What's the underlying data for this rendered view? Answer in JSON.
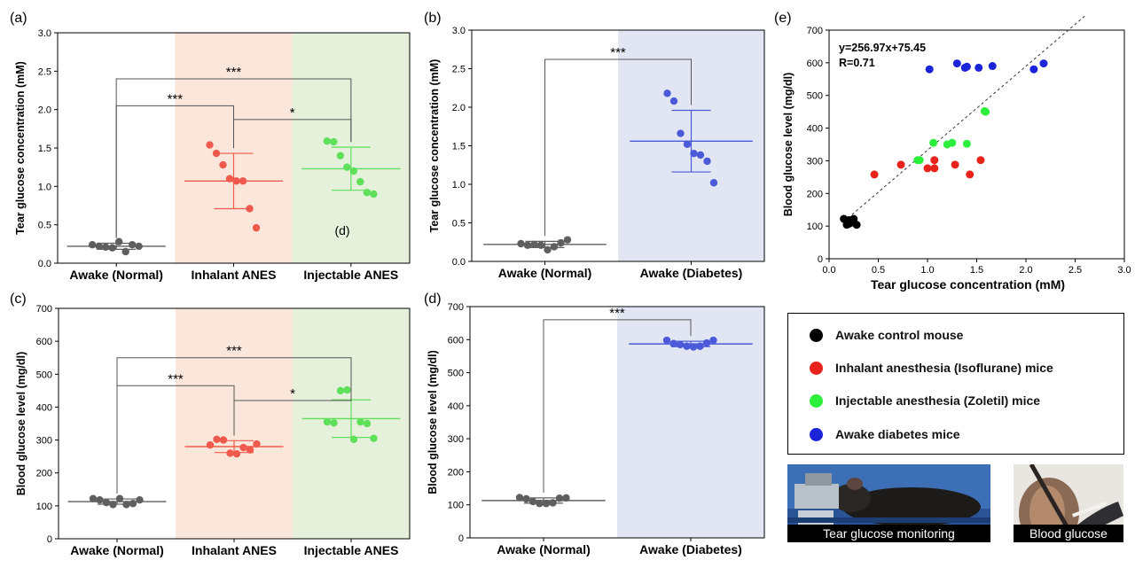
{
  "chart_data": [
    {
      "panel": "(a)",
      "type": "scatter",
      "categories": [
        "Awake (Normal)",
        "Inhalant ANES",
        "Injectable ANES"
      ],
      "ylabel": "Tear glucose concentration (mM)",
      "ylim": [
        0,
        3
      ],
      "yticks": [
        "0.0",
        "0.5",
        "1.0",
        "1.5",
        "2.0",
        "2.5",
        "3.0"
      ],
      "yticks_values": [
        0,
        0.5,
        1.0,
        1.5,
        2.0,
        2.5,
        3.0
      ],
      "series": [
        {
          "name": "Awake (Normal)",
          "color": "#5f5f5f",
          "values": [
            0.24,
            0.22,
            0.21,
            0.2,
            0.28,
            0.15,
            0.24,
            0.22
          ],
          "mean": 0.22,
          "sd": 0.04
        },
        {
          "name": "Inhalant ANES",
          "color": "#f05a4c",
          "values": [
            1.54,
            1.43,
            1.28,
            1.1,
            1.07,
            1.07,
            0.71,
            0.46
          ],
          "mean": 1.07,
          "sd": 0.36
        },
        {
          "name": "Injectable ANES",
          "color": "#5ee05a",
          "values": [
            1.59,
            1.58,
            1.4,
            1.25,
            1.2,
            1.06,
            0.92,
            0.9
          ],
          "mean": 1.23,
          "sd": 0.28
        }
      ],
      "significance": [
        {
          "from": 0,
          "to": 1,
          "label": "***",
          "y": 2.05
        },
        {
          "from": 0,
          "to": 2,
          "label": "***",
          "y": 2.4
        },
        {
          "from": 1,
          "to": 2,
          "label": "*",
          "y": 1.87
        }
      ],
      "annotation": "(d)"
    },
    {
      "panel": "(b)",
      "type": "scatter",
      "categories": [
        "Awake (Normal)",
        "Awake (Diabetes)"
      ],
      "ylabel": "Tear glucose concentration (mM)",
      "ylim": [
        0,
        3
      ],
      "yticks": [
        "0.0",
        "0.5",
        "1.0",
        "1.5",
        "2.0",
        "2.5",
        "3.0"
      ],
      "yticks_values": [
        0,
        0.5,
        1.0,
        1.5,
        2.0,
        2.5,
        3.0
      ],
      "series": [
        {
          "name": "Awake (Normal)",
          "color": "#5f5f5f",
          "values": [
            0.23,
            0.21,
            0.22,
            0.21,
            0.15,
            0.19,
            0.24,
            0.28
          ],
          "mean": 0.22,
          "sd": 0.04
        },
        {
          "name": "Awake (Diabetes)",
          "color": "#4a5ad8",
          "values": [
            2.18,
            2.08,
            1.66,
            1.52,
            1.4,
            1.38,
            1.3,
            1.02
          ],
          "mean": 1.56,
          "sd": 0.4
        }
      ],
      "significance": [
        {
          "from": 0,
          "to": 1,
          "label": "***",
          "y": 2.62
        }
      ]
    },
    {
      "panel": "(c)",
      "type": "scatter",
      "categories": [
        "Awake (Normal)",
        "Inhalant ANES",
        "Injectable ANES"
      ],
      "ylabel": "Blood glucose level  (mg/dl)",
      "ylim": [
        0,
        700
      ],
      "yticks": [
        "0",
        "100",
        "200",
        "300",
        "400",
        "500",
        "600",
        "700"
      ],
      "yticks_values": [
        0,
        100,
        200,
        300,
        400,
        500,
        600,
        700
      ],
      "series": [
        {
          "name": "Awake (Normal)",
          "color": "#5f5f5f",
          "values": [
            122,
            118,
            110,
            104,
            122,
            104,
            107,
            118
          ],
          "mean": 113,
          "sd": 8
        },
        {
          "name": "Inhalant ANES",
          "color": "#f05a4c",
          "values": [
            285,
            302,
            300,
            260,
            258,
            277,
            270,
            288
          ],
          "mean": 280,
          "sd": 18
        },
        {
          "name": "Injectable ANES",
          "color": "#5ee05a",
          "values": [
            355,
            352,
            450,
            452,
            302,
            355,
            350,
            305
          ],
          "mean": 365,
          "sd": 57
        }
      ],
      "significance": [
        {
          "from": 0,
          "to": 1,
          "label": "***",
          "y": 465
        },
        {
          "from": 0,
          "to": 2,
          "label": "***",
          "y": 550
        },
        {
          "from": 1,
          "to": 2,
          "label": "*",
          "y": 420
        }
      ]
    },
    {
      "panel": "(d)",
      "type": "scatter",
      "categories": [
        "Awake (Normal)",
        "Awake (Diabetes)"
      ],
      "ylabel": "Blood glucose level  (mg/dl)",
      "ylim": [
        0,
        700
      ],
      "yticks": [
        "0",
        "100",
        "200",
        "300",
        "400",
        "500",
        "600",
        "700"
      ],
      "yticks_values": [
        0,
        100,
        200,
        300,
        400,
        500,
        600,
        700
      ],
      "series": [
        {
          "name": "Awake (Normal)",
          "color": "#5f5f5f",
          "values": [
            122,
            118,
            110,
            104,
            104,
            106,
            120,
            121
          ],
          "mean": 113,
          "sd": 8
        },
        {
          "name": "Awake (Diabetes)",
          "color": "#4a5ad8",
          "values": [
            598,
            588,
            585,
            580,
            578,
            580,
            590,
            598
          ],
          "mean": 587,
          "sd": 8
        }
      ],
      "significance": [
        {
          "from": 0,
          "to": 1,
          "label": "***",
          "y": 660
        }
      ]
    },
    {
      "panel": "(e)",
      "type": "scatter",
      "xlabel": "Tear glucose concentration (mM)",
      "ylabel": "Blood glucose level  (mg/dl)",
      "xlim": [
        0,
        3
      ],
      "ylim": [
        0,
        700
      ],
      "xticks": [
        "0.0",
        "0.5",
        "1.0",
        "1.5",
        "2.0",
        "2.5",
        "3.0"
      ],
      "xticks_values": [
        0,
        0.5,
        1.0,
        1.5,
        2.0,
        2.5,
        3.0
      ],
      "yticks": [
        "0",
        "100",
        "200",
        "300",
        "400",
        "500",
        "600",
        "700"
      ],
      "yticks_values": [
        0,
        100,
        200,
        300,
        400,
        500,
        600,
        700
      ],
      "equation": "y=256.97x+75.45",
      "r_value": "R=0.71",
      "fit": {
        "slope": 256.97,
        "intercept": 75.45,
        "x_range": [
          0.15,
          2.6
        ]
      },
      "series": [
        {
          "name": "Awake control mouse",
          "color": "#000000",
          "x": [
            0.15,
            0.2,
            0.22,
            0.18,
            0.25,
            0.28,
            0.2,
            0.23
          ],
          "y": [
            122,
            118,
            110,
            104,
            122,
            104,
            107,
            118
          ]
        },
        {
          "name": "Inhalant anesthesia (Isoflurane) mice",
          "color": "#e8231b",
          "x": [
            0.46,
            0.73,
            1.0,
            1.07,
            1.07,
            1.28,
            1.43,
            1.54
          ],
          "y": [
            258,
            288,
            277,
            277,
            302,
            288,
            258,
            302
          ]
        },
        {
          "name": "Injectable anesthesia (Zoletil) mice",
          "color": "#2bef3a",
          "x": [
            0.9,
            0.92,
            1.06,
            1.2,
            1.25,
            1.4,
            1.58,
            1.59
          ],
          "y": [
            302,
            302,
            355,
            350,
            355,
            352,
            452,
            450
          ]
        },
        {
          "name": "Awake diabetes mice",
          "color": "#1b24d8",
          "x": [
            1.02,
            1.3,
            1.38,
            1.4,
            1.52,
            1.66,
            2.08,
            2.18
          ],
          "y": [
            580,
            598,
            585,
            588,
            585,
            590,
            580,
            598
          ]
        }
      ]
    }
  ],
  "legend": {
    "items": [
      {
        "label": "Awake control mouse",
        "color": "#000000"
      },
      {
        "label": "Inhalant anesthesia (Isoflurane) mice",
        "color": "#e8231b"
      },
      {
        "label": "Injectable anesthesia (Zoletil) mice",
        "color": "#2bef3a"
      },
      {
        "label": "Awake diabetes mice",
        "color": "#1b24d8"
      }
    ]
  },
  "photos": {
    "tear": {
      "caption": "Tear glucose monitoring"
    },
    "blood": {
      "caption": "Blood glucose"
    }
  },
  "bg_colors": {
    "inhalant": "#fbe6dc",
    "injectable": "#e6f1dc",
    "diabetes": "#e1e6f2"
  }
}
